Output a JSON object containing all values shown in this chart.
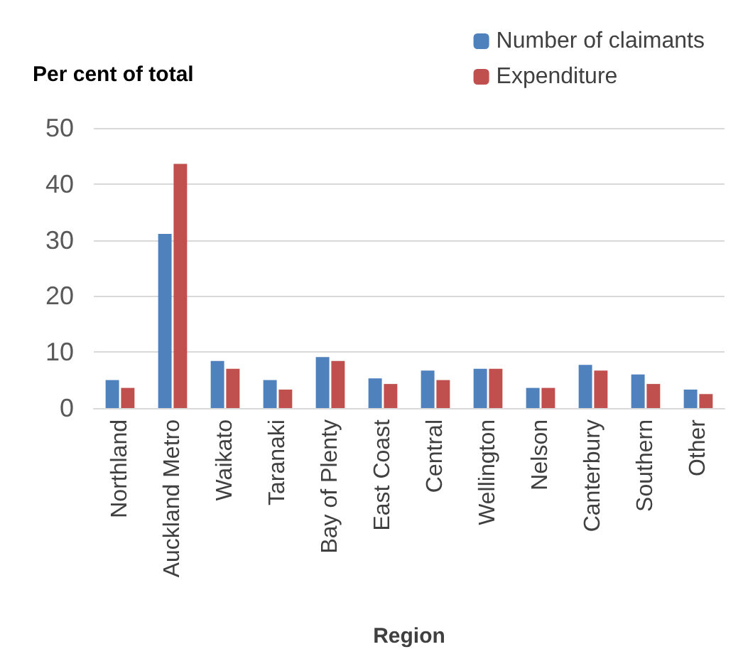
{
  "chart_data": {
    "type": "bar",
    "ylabel": "Per cent of total",
    "xlabel": "Region",
    "categories": [
      "Northland",
      "Auckland Metro",
      "Waikato",
      "Taranaki",
      "Bay of Plenty",
      "East Coast",
      "Central",
      "Wellington",
      "Nelson",
      "Canterbury",
      "Southern",
      "Other"
    ],
    "series": [
      {
        "name": "Number of claimants",
        "color": "#4f81bd",
        "values": [
          5.0,
          31.1,
          8.4,
          5.0,
          9.1,
          5.3,
          6.7,
          7.0,
          3.6,
          7.7,
          6.0,
          3.3
        ]
      },
      {
        "name": "Expenditure",
        "color": "#c0504d",
        "values": [
          3.6,
          43.6,
          7.0,
          3.3,
          8.4,
          4.3,
          5.0,
          7.0,
          3.6,
          6.7,
          4.3,
          2.5
        ]
      }
    ],
    "ylim": [
      0,
      50
    ],
    "yticks": [
      0,
      10,
      20,
      30,
      40,
      50
    ],
    "grid": "y",
    "legend": "top right"
  }
}
